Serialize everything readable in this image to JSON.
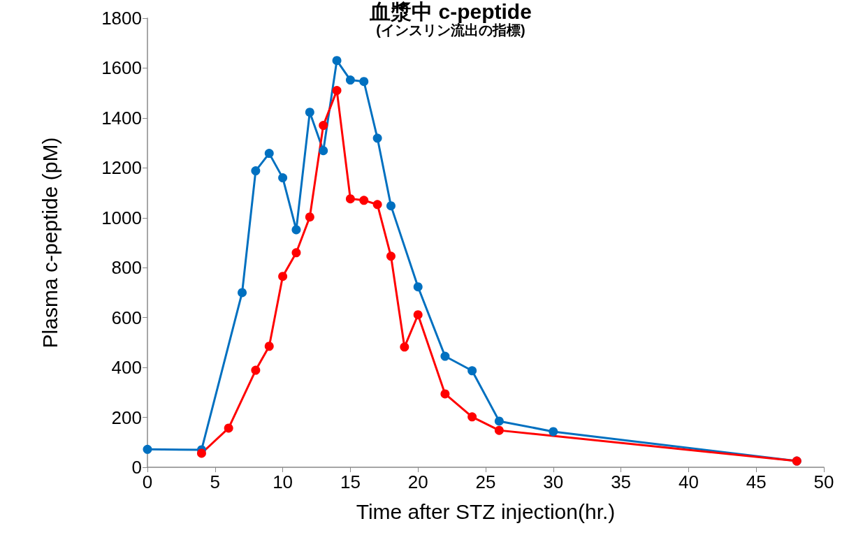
{
  "chart_data": {
    "type": "line",
    "title": "血漿中 c-peptide",
    "subtitle": "(インスリン流出の指標)",
    "xlabel": "Time after STZ injection(hr.)",
    "ylabel": "Plasma c-peptide (pM)",
    "xlim": [
      0,
      50
    ],
    "xticks": [
      0,
      5,
      10,
      15,
      20,
      25,
      30,
      35,
      40,
      45,
      50
    ],
    "ylim": [
      0,
      1800
    ],
    "yticks": [
      0,
      200,
      400,
      600,
      800,
      1000,
      1200,
      1400,
      1600,
      1800
    ],
    "grid": false,
    "marker": "circle",
    "line_style": "solid",
    "series": [
      {
        "color": "#0070c0",
        "x": [
          0,
          4,
          7,
          8,
          9,
          10,
          11,
          12,
          13,
          14,
          15,
          16,
          17,
          18,
          20,
          22,
          24,
          26,
          30,
          48
        ],
        "values": [
          72,
          70,
          700,
          1188,
          1258,
          1160,
          952,
          1423,
          1269,
          1630,
          1552,
          1546,
          1319,
          1048,
          723,
          445,
          387,
          185,
          143,
          25
        ]
      },
      {
        "color": "#ff0000",
        "x": [
          4,
          6,
          8,
          9,
          10,
          11,
          12,
          13,
          14,
          15,
          16,
          17,
          18,
          19,
          20,
          22,
          24,
          26,
          48
        ],
        "values": [
          56,
          157,
          389,
          485,
          765,
          860,
          1003,
          1370,
          1510,
          1076,
          1070,
          1053,
          846,
          482,
          611,
          294,
          202,
          148,
          25
        ]
      }
    ]
  }
}
